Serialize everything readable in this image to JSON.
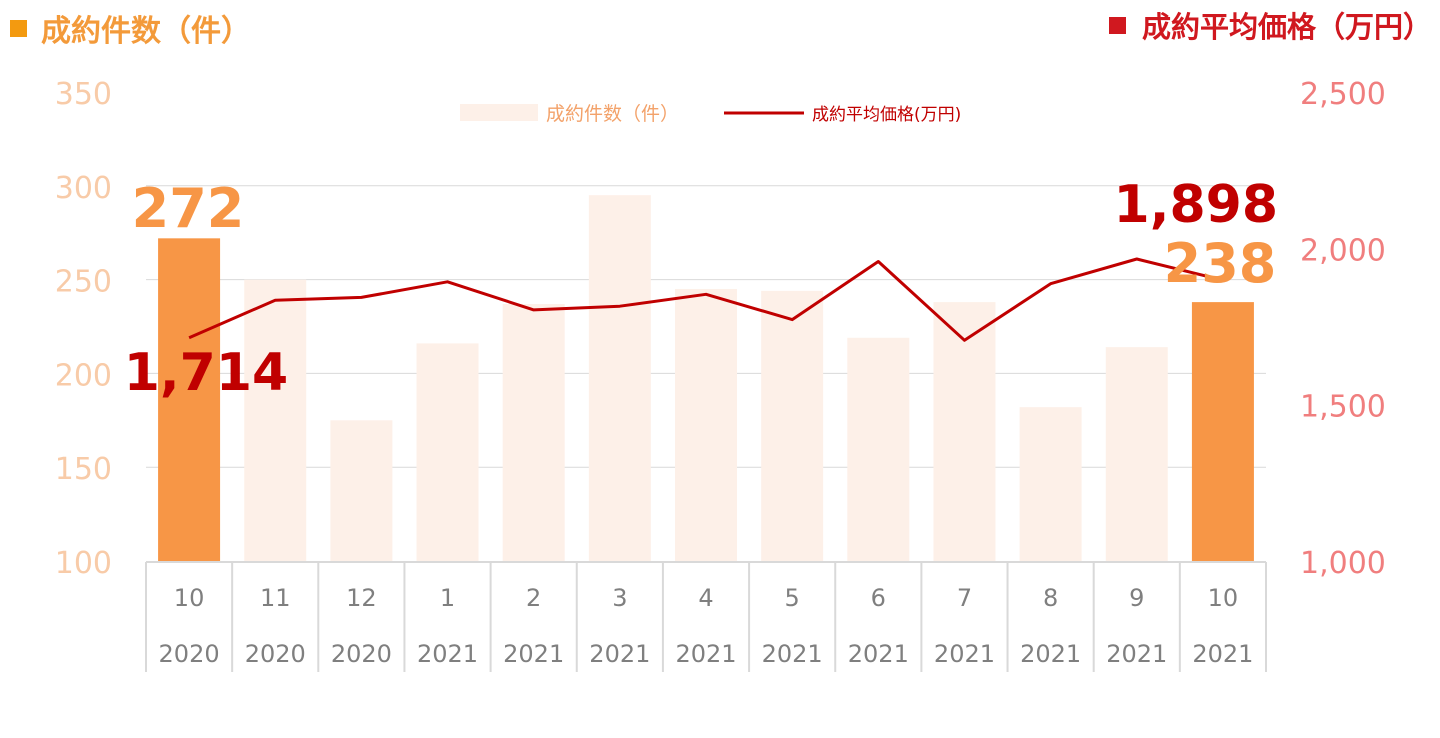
{
  "left_axis_title": "成約件数（件）",
  "right_axis_title": "成約平均価格（万円）",
  "colors": {
    "bar_highlight": "#F79646",
    "bar_faded": "#FDF0E8",
    "line": "#C00000",
    "left_axis_text": "#F8CBA8",
    "right_axis_text": "#F07E7E",
    "grid": "#D9D9D9",
    "category_text": "#7F7F7F",
    "callout_count": "#F79646",
    "callout_price": "#C00000"
  },
  "chart_data": {
    "type": "bar",
    "categories": [
      "10",
      "11",
      "12",
      "1",
      "2",
      "3",
      "4",
      "5",
      "6",
      "7",
      "8",
      "9",
      "10"
    ],
    "category_years": [
      "2020",
      "2020",
      "2020",
      "2021",
      "2021",
      "2021",
      "2021",
      "2021",
      "2021",
      "2021",
      "2021",
      "2021",
      "2021"
    ],
    "series": [
      {
        "name": "成約件数（件）",
        "type": "bar",
        "axis": "left",
        "values": [
          272,
          250,
          175,
          216,
          237,
          295,
          245,
          244,
          219,
          238,
          182,
          214,
          238
        ],
        "highlight_indices": [
          0,
          12
        ]
      },
      {
        "name": "成約平均価格(万円)",
        "type": "line",
        "axis": "right",
        "values": [
          1714,
          1834,
          1843,
          1893,
          1803,
          1815,
          1853,
          1772,
          1958,
          1706,
          1887,
          1966,
          1898
        ]
      }
    ],
    "left_axis": {
      "ylim": [
        100,
        350
      ],
      "ticks": [
        "100",
        "150",
        "200",
        "250",
        "300",
        "350"
      ]
    },
    "right_axis": {
      "ylim": [
        1000,
        2500
      ],
      "ticks": [
        "1,000",
        "1,500",
        "2,000",
        "2,500"
      ]
    },
    "grid": true,
    "legend_position": "top-center",
    "callouts": {
      "start_count": "272",
      "start_price": "1,714",
      "end_count": "238",
      "end_price": "1,898"
    }
  }
}
